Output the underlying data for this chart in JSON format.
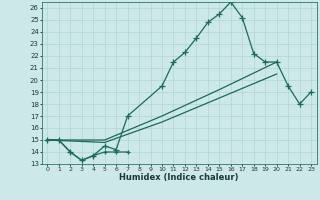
{
  "xlabel": "Humidex (Indice chaleur)",
  "bg_color": "#cce8e8",
  "line_color": "#1a6b5a",
  "grid_color": "#b0d4d4",
  "xlim": [
    -0.5,
    23.5
  ],
  "ylim": [
    13,
    26.5
  ],
  "yticks": [
    13,
    14,
    15,
    16,
    17,
    18,
    19,
    20,
    21,
    22,
    23,
    24,
    25,
    26
  ],
  "xticks": [
    0,
    1,
    2,
    3,
    4,
    5,
    6,
    7,
    8,
    9,
    10,
    11,
    12,
    13,
    14,
    15,
    16,
    17,
    18,
    19,
    20,
    21,
    22,
    23
  ],
  "line_main_x": [
    0,
    1,
    2,
    3,
    4,
    5,
    6,
    7,
    10,
    11,
    12,
    13,
    14,
    15,
    16,
    17,
    18,
    19,
    20,
    21,
    22,
    23
  ],
  "line_main_y": [
    15,
    15,
    14,
    13.3,
    13.7,
    14.5,
    14.2,
    17.0,
    19.5,
    21.5,
    22.3,
    23.5,
    24.8,
    25.5,
    26.5,
    25.2,
    22.2,
    21.5,
    21.5,
    19.5,
    18.0,
    19.0
  ],
  "line_straight1_x": [
    0,
    5,
    10,
    15,
    20
  ],
  "line_straight1_y": [
    15,
    15.0,
    17.0,
    19.2,
    21.5
  ],
  "line_straight2_x": [
    0,
    5,
    10,
    15,
    20
  ],
  "line_straight2_y": [
    15,
    14.8,
    16.5,
    18.5,
    20.5
  ],
  "line_short_x": [
    0,
    1,
    2,
    3,
    4,
    5,
    6,
    7
  ],
  "line_short_y": [
    15,
    15,
    14,
    13.3,
    13.7,
    14.0,
    14.0,
    14.0
  ]
}
